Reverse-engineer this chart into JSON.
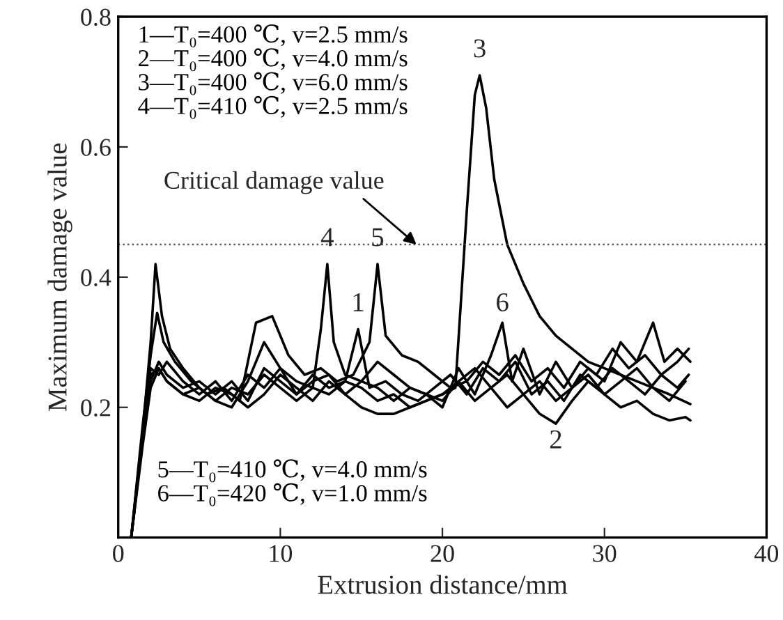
{
  "chart_data": {
    "type": "line",
    "xlabel": "Extrusion distance/mm",
    "ylabel": "Maximum damage value",
    "xlim": [
      0,
      40
    ],
    "xticks": [
      0,
      10,
      20,
      30,
      40
    ],
    "ylim": [
      0,
      0.8
    ],
    "yticks": [
      0.2,
      0.4,
      0.6,
      0.8
    ],
    "grid": false,
    "marker": "none",
    "line_style": "solid",
    "ref_lines": [
      {
        "axis": "y",
        "value": 0.45,
        "label": "Critical damage value",
        "color": "#555555",
        "line_style": "dotted"
      }
    ],
    "annotations": [
      {
        "text": "1",
        "x": 14.8,
        "y": 0.33
      },
      {
        "text": "2",
        "x": 27,
        "y": 0.175
      },
      {
        "text": "3",
        "x": 22.3,
        "y": 0.72
      },
      {
        "text": "4",
        "x": 12.9,
        "y": 0.43
      },
      {
        "text": "5",
        "x": 16.0,
        "y": 0.43
      },
      {
        "text": "6",
        "x": 23.7,
        "y": 0.33
      },
      "1—T₀=400 ℃, v=2.5 mm/s",
      "2—T₀=400 ℃, v=4.0 mm/s",
      "3—T₀=400 ℃, v=6.0 mm/s",
      "4—T₀=410 ℃, v=2.5 mm/s",
      "5—T₀=410 ℃, v=4.0 mm/s",
      "6—T₀=420 ℃, v=1.0 mm/s"
    ],
    "series": [
      {
        "color": "#000000",
        "x": [
          0.8,
          1.5,
          2.0,
          2.5,
          3,
          4,
          5,
          6,
          7,
          8,
          9,
          10,
          11,
          12,
          13,
          14,
          14.8,
          15.5,
          16.5,
          17.5,
          18.5,
          19.5,
          20.5,
          21.5,
          22.5,
          23.5,
          24.5,
          25.5,
          26.5,
          27.5,
          28.5,
          29.5,
          30.5,
          31.5,
          32.5,
          33.5,
          34.5,
          35.2
        ],
        "values": [
          0,
          0.15,
          0.24,
          0.27,
          0.25,
          0.23,
          0.24,
          0.22,
          0.24,
          0.21,
          0.26,
          0.24,
          0.22,
          0.25,
          0.23,
          0.24,
          0.32,
          0.23,
          0.24,
          0.22,
          0.21,
          0.23,
          0.25,
          0.22,
          0.26,
          0.24,
          0.27,
          0.22,
          0.24,
          0.21,
          0.25,
          0.23,
          0.26,
          0.24,
          0.22,
          0.25,
          0.23,
          0.25
        ]
      },
      {
        "color": "#000000",
        "x": [
          0.8,
          1.5,
          2.0,
          2.5,
          3,
          4,
          5,
          6,
          7,
          8,
          9,
          10,
          11,
          12,
          13,
          14,
          15,
          16,
          17,
          18,
          19,
          20,
          21,
          22,
          23,
          24,
          25,
          26,
          27,
          28,
          29,
          30,
          31,
          32,
          33,
          34,
          35,
          35.3
        ],
        "values": [
          0,
          0.14,
          0.23,
          0.26,
          0.24,
          0.22,
          0.21,
          0.23,
          0.22,
          0.2,
          0.22,
          0.25,
          0.23,
          0.21,
          0.24,
          0.22,
          0.2,
          0.19,
          0.19,
          0.2,
          0.21,
          0.22,
          0.24,
          0.21,
          0.23,
          0.2,
          0.22,
          0.19,
          0.175,
          0.21,
          0.24,
          0.22,
          0.2,
          0.21,
          0.19,
          0.18,
          0.185,
          0.18
        ]
      },
      {
        "color": "#000000",
        "x": [
          0.8,
          1.5,
          2.0,
          2.5,
          3,
          4,
          5,
          6,
          7,
          8,
          9,
          10,
          11,
          12,
          13,
          14,
          15,
          16,
          17,
          18,
          19,
          20,
          20.8,
          21.5,
          22.0,
          22.3,
          22.7,
          23.2,
          24.0,
          25,
          26,
          27,
          28,
          29,
          30,
          31,
          32,
          33,
          34,
          35.3
        ],
        "values": [
          0,
          0.15,
          0.25,
          0.26,
          0.24,
          0.22,
          0.23,
          0.21,
          0.23,
          0.22,
          0.25,
          0.23,
          0.21,
          0.23,
          0.22,
          0.24,
          0.23,
          0.21,
          0.22,
          0.2,
          0.21,
          0.22,
          0.23,
          0.5,
          0.68,
          0.71,
          0.66,
          0.55,
          0.45,
          0.39,
          0.34,
          0.31,
          0.29,
          0.27,
          0.26,
          0.25,
          0.24,
          0.23,
          0.22,
          0.205
        ]
      },
      {
        "color": "#000000",
        "x": [
          0.8,
          1.5,
          2.0,
          2.3,
          2.7,
          3.2,
          4,
          5,
          6,
          7,
          8,
          9,
          10,
          11,
          12,
          12.5,
          12.9,
          13.3,
          14,
          15,
          16,
          17,
          18,
          19,
          20,
          21,
          22,
          23,
          24,
          25,
          26,
          27,
          28,
          29,
          30,
          31,
          32,
          33,
          34,
          35
        ],
        "values": [
          0,
          0.16,
          0.3,
          0.42,
          0.34,
          0.29,
          0.26,
          0.23,
          0.21,
          0.2,
          0.24,
          0.3,
          0.26,
          0.24,
          0.23,
          0.32,
          0.42,
          0.3,
          0.25,
          0.24,
          0.27,
          0.25,
          0.23,
          0.22,
          0.21,
          0.24,
          0.26,
          0.23,
          0.25,
          0.22,
          0.24,
          0.21,
          0.23,
          0.25,
          0.22,
          0.24,
          0.26,
          0.23,
          0.21,
          0.24
        ]
      },
      {
        "color": "#000000",
        "x": [
          0.8,
          1.5,
          2.0,
          2.4,
          2.8,
          3.5,
          4.5,
          5.5,
          6.5,
          7.5,
          8.5,
          9.5,
          10.5,
          11.5,
          12.5,
          13.5,
          14.5,
          15.5,
          16.0,
          16.5,
          17.5,
          18.5,
          19.5,
          20.5,
          21.5,
          22.5,
          23.5,
          24.5,
          25.5,
          26.5,
          27.5,
          28.5,
          29.5,
          30.5,
          31.5,
          32.5,
          33.5,
          34.5,
          35.2
        ],
        "values": [
          0,
          0.17,
          0.28,
          0.345,
          0.3,
          0.27,
          0.24,
          0.22,
          0.23,
          0.21,
          0.33,
          0.34,
          0.28,
          0.25,
          0.26,
          0.24,
          0.25,
          0.3,
          0.42,
          0.31,
          0.28,
          0.27,
          0.25,
          0.23,
          0.24,
          0.27,
          0.25,
          0.28,
          0.24,
          0.26,
          0.23,
          0.27,
          0.25,
          0.29,
          0.26,
          0.28,
          0.25,
          0.27,
          0.29
        ]
      },
      {
        "color": "#000000",
        "x": [
          0.8,
          1.5,
          2.0,
          2.5,
          3,
          4,
          5,
          6,
          7,
          8,
          9,
          10,
          11,
          12,
          13,
          14,
          15,
          16,
          17,
          18,
          19,
          20,
          21,
          22,
          23,
          23.7,
          24.3,
          25,
          26,
          27,
          28,
          29,
          30,
          31,
          32,
          33,
          33.7,
          34.5,
          35.3
        ],
        "values": [
          0,
          0.16,
          0.26,
          0.25,
          0.27,
          0.24,
          0.22,
          0.24,
          0.21,
          0.25,
          0.23,
          0.26,
          0.22,
          0.24,
          0.25,
          0.22,
          0.24,
          0.23,
          0.21,
          0.23,
          0.22,
          0.2,
          0.26,
          0.22,
          0.28,
          0.33,
          0.24,
          0.29,
          0.22,
          0.27,
          0.23,
          0.26,
          0.24,
          0.3,
          0.27,
          0.33,
          0.27,
          0.29,
          0.27
        ]
      }
    ]
  }
}
